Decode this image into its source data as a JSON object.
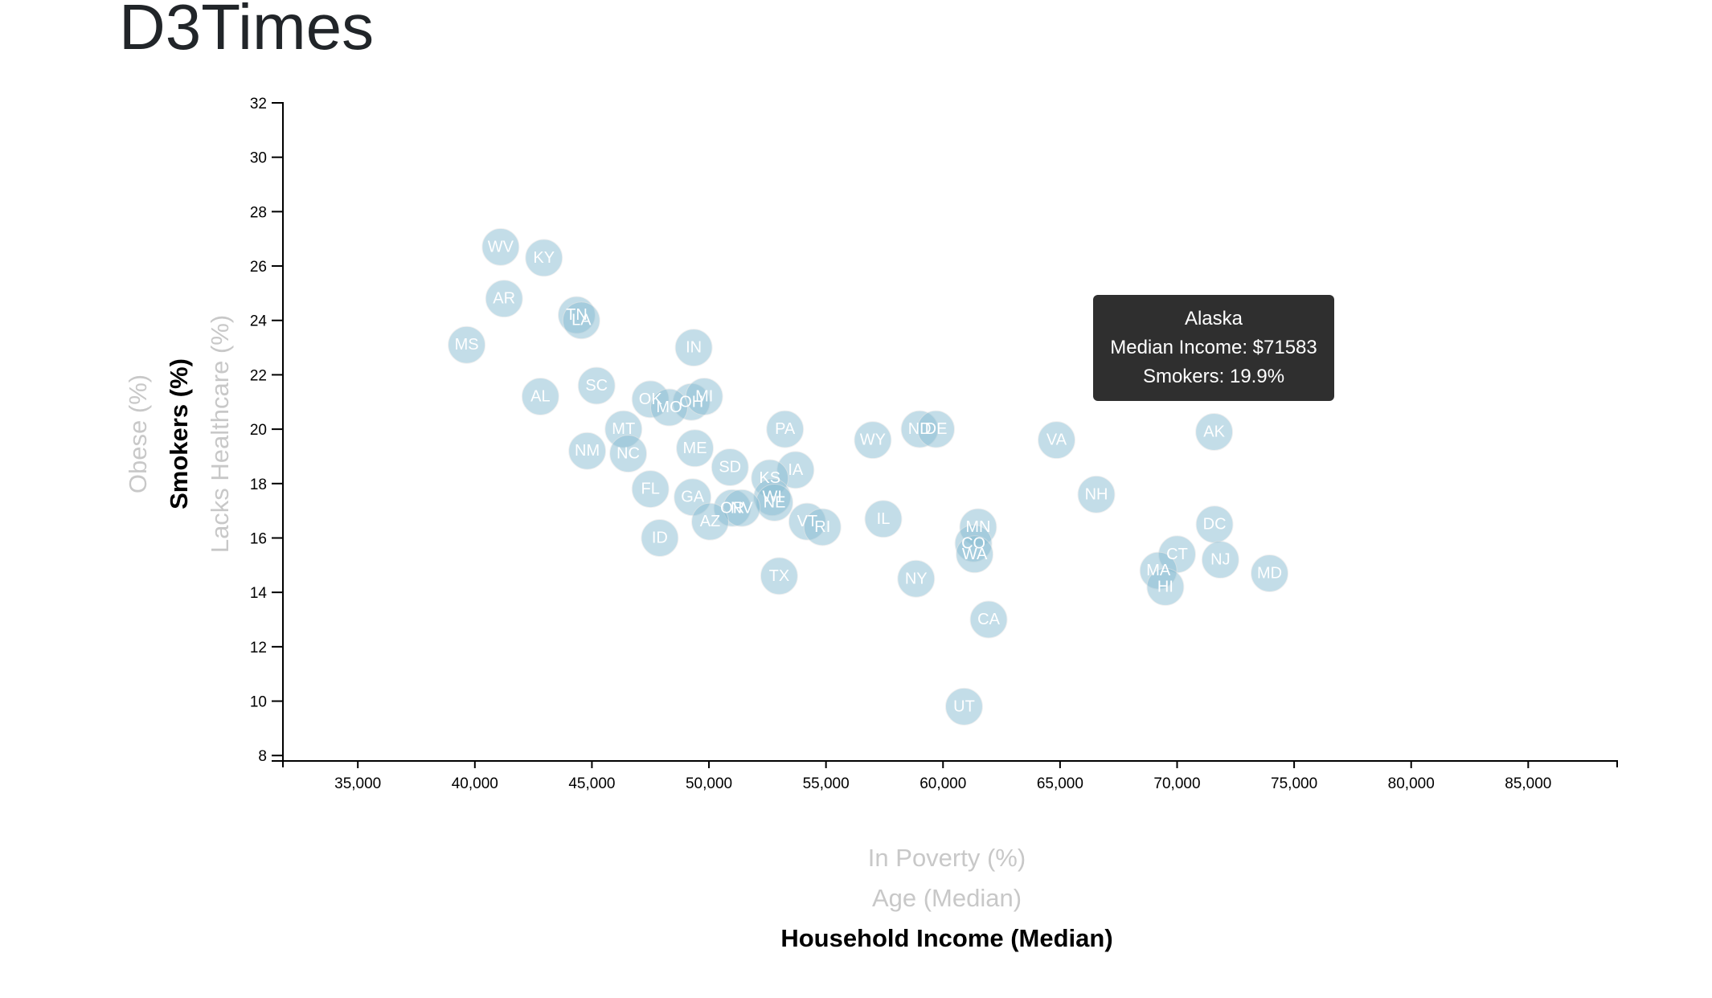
{
  "title": "D3Times",
  "tooltip": {
    "state": "Alaska",
    "line1": "Median Income: $71583",
    "line2": "Smokers: 19.9%"
  },
  "axis_labels": {
    "x": [
      {
        "text": "In Poverty (%)",
        "active": false
      },
      {
        "text": "Age (Median)",
        "active": false
      },
      {
        "text": "Household Income (Median)",
        "active": true
      }
    ],
    "y": [
      {
        "text": "Obese (%)",
        "active": false
      },
      {
        "text": "Smokers (%)",
        "active": true
      },
      {
        "text": "Lacks Healthcare (%)",
        "active": false
      }
    ]
  },
  "colors": {
    "circle": "#89bdd3",
    "tooltip_bg": "#2f2f2f",
    "inactive_label": "#c8c8c8"
  },
  "chart_data": {
    "type": "scatter",
    "xlabel": "Household Income (Median)",
    "ylabel": "Smokers (%)",
    "xlim": [
      31800,
      88800
    ],
    "ylim": [
      7.8,
      32
    ],
    "xticks": [
      35000,
      40000,
      45000,
      50000,
      55000,
      60000,
      65000,
      70000,
      75000,
      80000,
      85000
    ],
    "yticks": [
      8,
      10,
      12,
      14,
      16,
      18,
      20,
      22,
      24,
      26,
      28,
      30,
      32
    ],
    "grid": false,
    "points": [
      {
        "label": "WV",
        "x": 41100,
        "y": 26.7
      },
      {
        "label": "KY",
        "x": 42950,
        "y": 26.3
      },
      {
        "label": "AR",
        "x": 41250,
        "y": 24.8
      },
      {
        "label": "TN",
        "x": 44350,
        "y": 24.2
      },
      {
        "label": "LA",
        "x": 44550,
        "y": 24.0
      },
      {
        "label": "MS",
        "x": 39650,
        "y": 23.1
      },
      {
        "label": "IN",
        "x": 49350,
        "y": 23.0
      },
      {
        "label": "AL",
        "x": 42800,
        "y": 21.2
      },
      {
        "label": "SC",
        "x": 45200,
        "y": 21.6
      },
      {
        "label": "OK",
        "x": 47500,
        "y": 21.1
      },
      {
        "label": "OH",
        "x": 49250,
        "y": 21.0
      },
      {
        "label": "MI",
        "x": 49800,
        "y": 21.2
      },
      {
        "label": "MO",
        "x": 48300,
        "y": 20.8
      },
      {
        "label": "MT",
        "x": 46350,
        "y": 20.0
      },
      {
        "label": "PA",
        "x": 53250,
        "y": 20.0
      },
      {
        "label": "WY",
        "x": 57000,
        "y": 19.6
      },
      {
        "label": "ND",
        "x": 59000,
        "y": 20.0
      },
      {
        "label": "DE",
        "x": 59700,
        "y": 20.0
      },
      {
        "label": "VA",
        "x": 64850,
        "y": 19.6
      },
      {
        "label": "AK",
        "x": 71583,
        "y": 19.9
      },
      {
        "label": "NM",
        "x": 44800,
        "y": 19.2
      },
      {
        "label": "NC",
        "x": 46550,
        "y": 19.1
      },
      {
        "label": "ME",
        "x": 49400,
        "y": 19.3
      },
      {
        "label": "SD",
        "x": 50900,
        "y": 18.6
      },
      {
        "label": "IA",
        "x": 53700,
        "y": 18.5
      },
      {
        "label": "KS",
        "x": 52600,
        "y": 18.2
      },
      {
        "label": "FL",
        "x": 47500,
        "y": 17.8
      },
      {
        "label": "GA",
        "x": 49300,
        "y": 17.5
      },
      {
        "label": "WI",
        "x": 52700,
        "y": 17.5
      },
      {
        "label": "NE",
        "x": 52800,
        "y": 17.3
      },
      {
        "label": "NH",
        "x": 66550,
        "y": 17.6
      },
      {
        "label": "OR",
        "x": 51000,
        "y": 17.1
      },
      {
        "label": "NV",
        "x": 51400,
        "y": 17.1
      },
      {
        "label": "AZ",
        "x": 50050,
        "y": 16.6
      },
      {
        "label": "VT",
        "x": 54200,
        "y": 16.6
      },
      {
        "label": "RI",
        "x": 54850,
        "y": 16.4
      },
      {
        "label": "IL",
        "x": 57450,
        "y": 16.7
      },
      {
        "label": "MN",
        "x": 61500,
        "y": 16.4
      },
      {
        "label": "CO",
        "x": 61300,
        "y": 15.8
      },
      {
        "label": "WA",
        "x": 61350,
        "y": 15.4
      },
      {
        "label": "DC",
        "x": 71600,
        "y": 16.5
      },
      {
        "label": "CT",
        "x": 70000,
        "y": 15.4
      },
      {
        "label": "NJ",
        "x": 71850,
        "y": 15.2
      },
      {
        "label": "MA",
        "x": 69200,
        "y": 14.8
      },
      {
        "label": "HI",
        "x": 69500,
        "y": 14.2
      },
      {
        "label": "MD",
        "x": 73950,
        "y": 14.7
      },
      {
        "label": "ID",
        "x": 47900,
        "y": 16.0
      },
      {
        "label": "TX",
        "x": 53000,
        "y": 14.6
      },
      {
        "label": "NY",
        "x": 58850,
        "y": 14.5
      },
      {
        "label": "CA",
        "x": 61950,
        "y": 13.0
      },
      {
        "label": "UT",
        "x": 60900,
        "y": 9.8
      }
    ]
  }
}
